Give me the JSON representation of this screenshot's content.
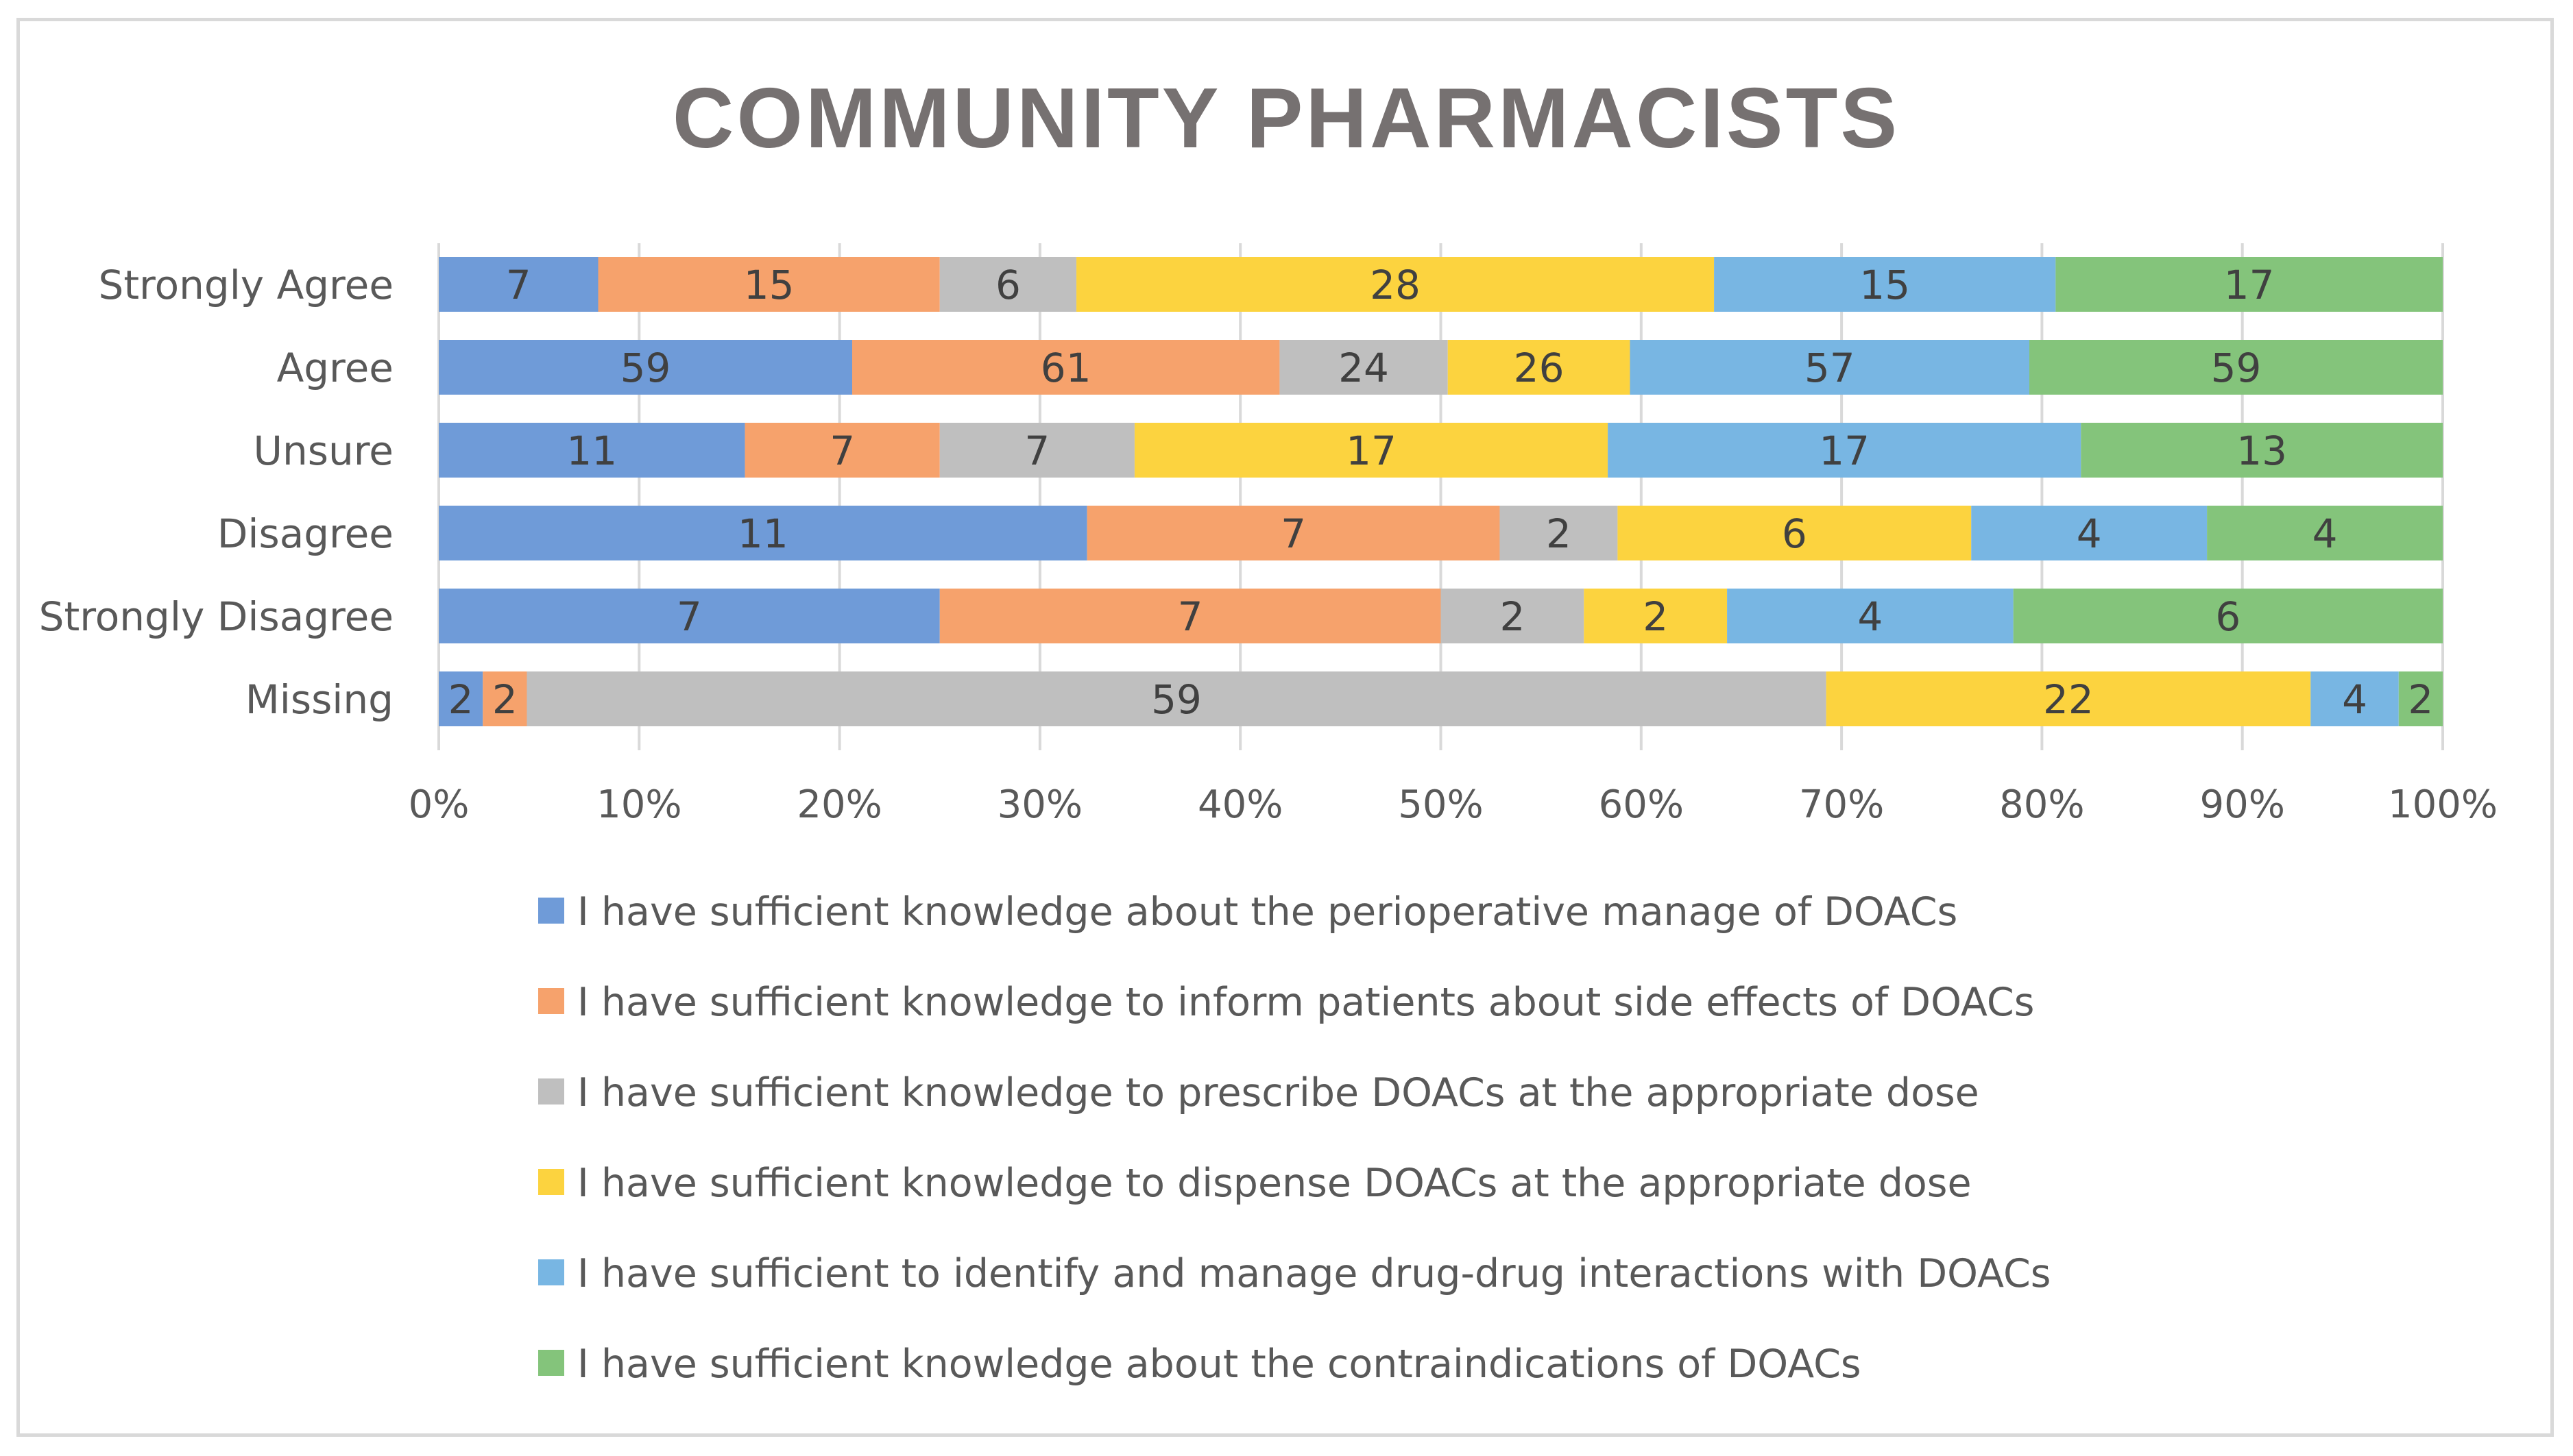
{
  "chart_data": {
    "type": "bar",
    "orientation": "horizontal",
    "stacked": "percent",
    "title": "COMMUNITY PHARMACISTS",
    "categories": [
      "Strongly Agree",
      "Agree",
      "Unsure",
      "Disagree",
      "Strongly Disagree",
      "Missing"
    ],
    "xticks": [
      "0%",
      "10%",
      "20%",
      "30%",
      "40%",
      "50%",
      "60%",
      "70%",
      "80%",
      "90%",
      "100%"
    ],
    "xlim": [
      0,
      100
    ],
    "grid": true,
    "legend_position": "bottom",
    "series": [
      {
        "name": "I have sufficient knowledge about the perioperative manage of DOACs",
        "color": "#6f9bd8",
        "values": [
          7,
          59,
          11,
          11,
          7,
          2
        ]
      },
      {
        "name": "I have sufficient knowledge to inform patients about side effects of DOACs",
        "color": "#f6a26c",
        "values": [
          15,
          61,
          7,
          7,
          7,
          2
        ]
      },
      {
        "name": "I have sufficient knowledge to prescribe DOACs at the appropriate dose",
        "color": "#bfbfbf",
        "values": [
          6,
          24,
          7,
          2,
          2,
          59
        ]
      },
      {
        "name": "I have sufficient knowledge to dispense DOACs at the appropriate dose",
        "color": "#fcd33f",
        "values": [
          28,
          26,
          17,
          6,
          2,
          22
        ]
      },
      {
        "name": "I have sufficient to identify and manage drug-drug interactions with DOACs",
        "color": "#78b6e3",
        "values": [
          15,
          57,
          17,
          4,
          4,
          4
        ]
      },
      {
        "name": "I have sufficient knowledge about the contraindications of DOACs",
        "color": "#84c47b",
        "values": [
          17,
          59,
          13,
          4,
          6,
          2
        ]
      }
    ]
  }
}
